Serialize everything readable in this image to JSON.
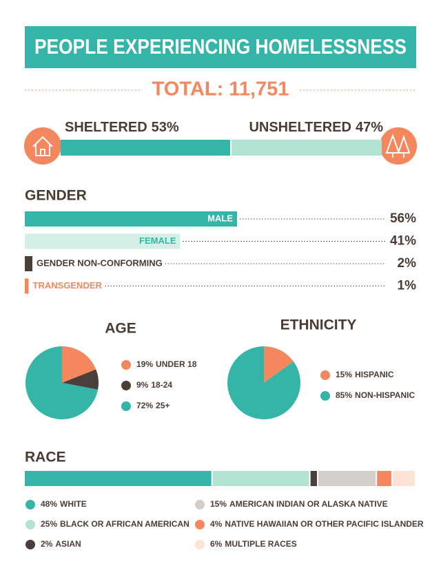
{
  "header": {
    "title": "PEOPLE EXPERIENCING HOMELESSNESS",
    "total": "TOTAL: 11,751"
  },
  "chart_data": [
    {
      "type": "stacked-bar",
      "categories": [
        "SHELTERED",
        "UNSHELTERED"
      ],
      "values": [
        53,
        47
      ],
      "value_labels": [
        "53%",
        "47%"
      ],
      "colors": [
        "#35b5a8",
        "#b3e3d3"
      ]
    },
    {
      "type": "bar",
      "title": "GENDER",
      "categories": [
        "MALE",
        "FEMALE",
        "GENDER NON-CONFORMING",
        "TRANSGENDER"
      ],
      "values": [
        56,
        41,
        2,
        1
      ],
      "value_labels": [
        "56%",
        "41%",
        "2%",
        "1%"
      ],
      "colors": [
        "#35b5a8",
        "#d3efe6",
        "#4a3f3a",
        "#f4875e"
      ]
    },
    {
      "type": "pie",
      "title": "AGE",
      "categories": [
        "UNDER 18",
        "18-24",
        "25+"
      ],
      "values": [
        19,
        9,
        72
      ],
      "value_labels": [
        "19%",
        "9%",
        "72%"
      ],
      "colors": [
        "#f4875e",
        "#4a3f3a",
        "#35b5a8"
      ]
    },
    {
      "type": "pie",
      "title": "ETHNICITY",
      "categories": [
        "HISPANIC",
        "NON-HISPANIC"
      ],
      "values": [
        15,
        85
      ],
      "value_labels": [
        "15%",
        "85%"
      ],
      "colors": [
        "#f4875e",
        "#35b5a8"
      ]
    },
    {
      "type": "stacked-bar",
      "title": "RACE",
      "categories": [
        "WHITE",
        "BLACK OR AFRICAN AMERICAN",
        "ASIAN",
        "AMERICAN INDIAN OR ALASKA NATIVE",
        "NATIVE HAWAIIAN OR OTHER PACIFIC ISLANDER",
        "MULTIPLE RACES"
      ],
      "values": [
        48,
        25,
        2,
        15,
        4,
        6
      ],
      "value_labels": [
        "48%",
        "25%",
        "2%",
        "15%",
        "4%",
        "6%"
      ],
      "colors": [
        "#35b5a8",
        "#b3e3d3",
        "#4a3f3a",
        "#d3ceca",
        "#f4875e",
        "#fde3d5"
      ]
    }
  ]
}
